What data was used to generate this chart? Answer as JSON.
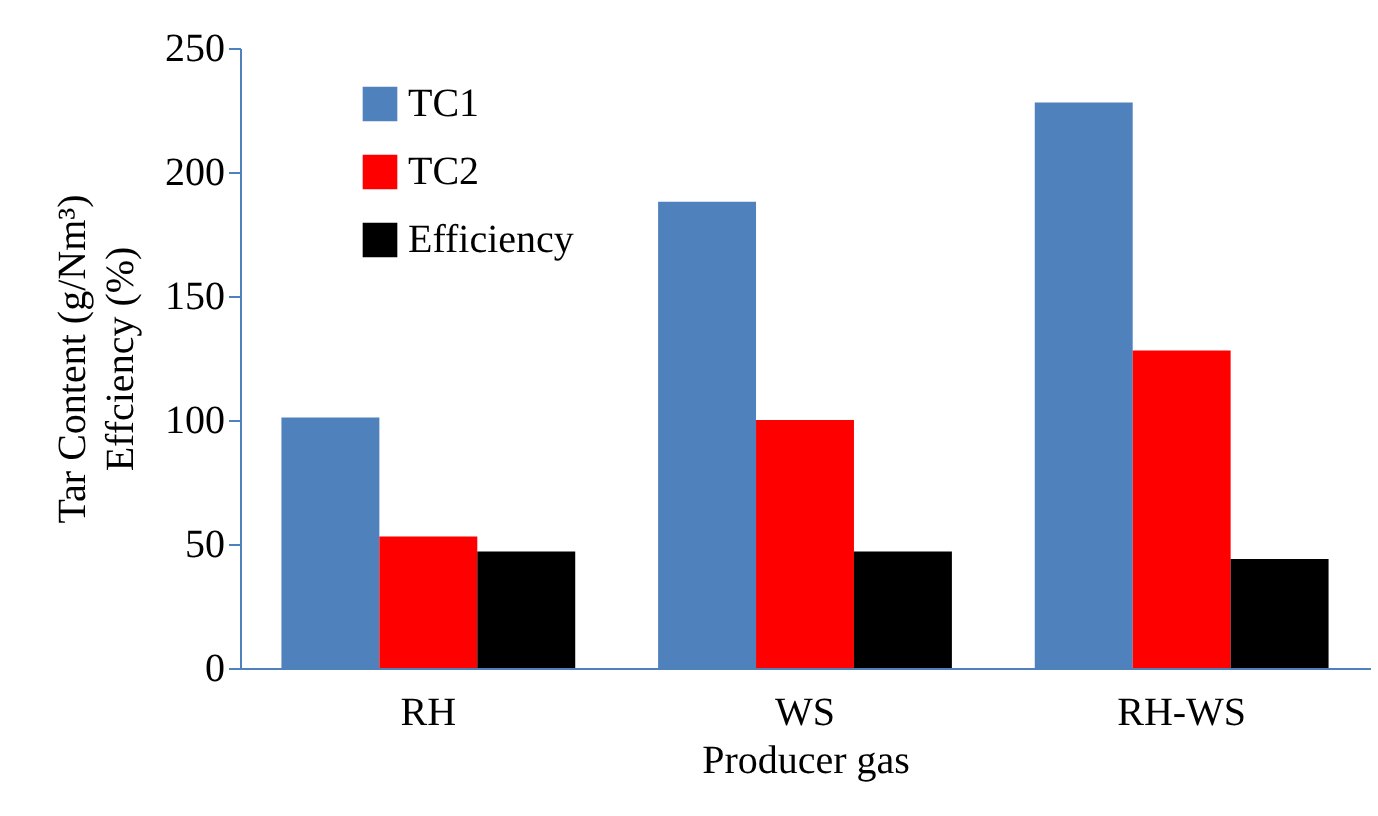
{
  "chart_data": {
    "type": "bar",
    "xlabel": "Producer gas",
    "ylabel": "Tar Content (g/Nm³)\nEffciency (%)",
    "categories": [
      "RH",
      "WS",
      "RH-WS"
    ],
    "series": [
      {
        "name": "TC1",
        "color": "#4f81bd",
        "values": [
          101,
          188,
          228
        ]
      },
      {
        "name": "TC2",
        "color": "#ff0000",
        "values": [
          53,
          100,
          128
        ]
      },
      {
        "name": "Efficiency",
        "color": "#000000",
        "values": [
          47,
          47,
          44
        ]
      }
    ],
    "ylim": [
      0,
      250
    ],
    "yticks": [
      0,
      50,
      100,
      150,
      200,
      250
    ],
    "legend": "top left"
  }
}
